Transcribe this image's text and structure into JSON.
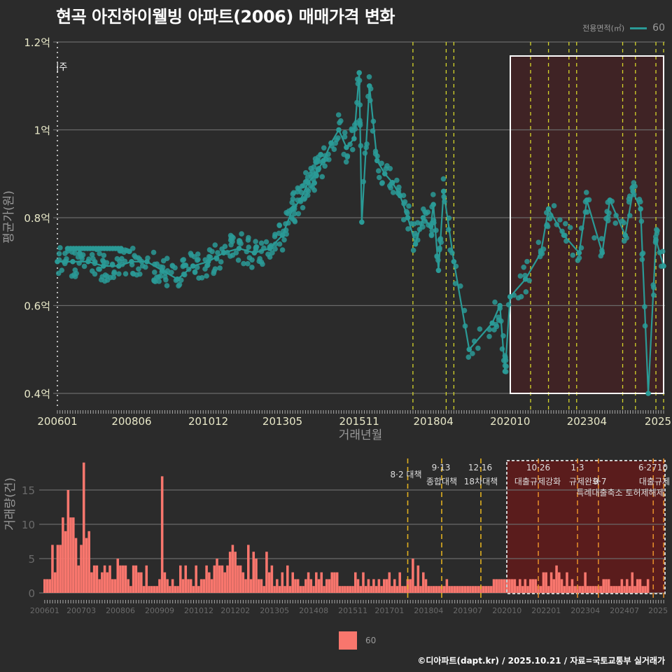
{
  "title": "현곡 아진하이웰빙 아파트(2006) 매매가격 변화",
  "legend_top": {
    "label": "전용면적(㎡)",
    "value": "60",
    "color": "#2a9a96"
  },
  "legend_bottom": {
    "value": "60",
    "color": "#f8766d"
  },
  "caption": "©디아파트(dapt.kr) / 2025.10.21 / 자료=국토교통부 실거래가",
  "annotations_top": {
    "left_marker": "|주"
  },
  "chart_data": [
    {
      "type": "line",
      "title": "현곡 아진하이웰빙 아파트(2006) 매매가격 변화",
      "xlabel": "거래년월",
      "ylabel": "평균가(원)",
      "x_ticks": [
        "200601",
        "200806",
        "201012",
        "201305",
        "201511",
        "201804",
        "202010",
        "202304",
        "2025"
      ],
      "y_ticks": [
        "0.4억",
        "0.6억",
        "0.8억",
        "1억",
        "1.2억"
      ],
      "ylim": [
        0.38,
        1.2
      ],
      "unit": "억원",
      "grid": true,
      "series": [
        {
          "name": "60",
          "color": "#2a9a96",
          "points": [
            [
              "200601",
              0.7
            ],
            [
              "200607",
              0.7
            ],
            [
              "200701",
              0.7
            ],
            [
              "200707",
              0.69
            ],
            [
              "200801",
              0.69
            ],
            [
              "200806",
              0.7
            ],
            [
              "200812",
              0.7
            ],
            [
              "200906",
              0.68
            ],
            [
              "200912",
              0.66
            ],
            [
              "201006",
              0.69
            ],
            [
              "201012",
              0.7
            ],
            [
              "201106",
              0.72
            ],
            [
              "201112",
              0.73
            ],
            [
              "201206",
              0.72
            ],
            [
              "201212",
              0.73
            ],
            [
              "201305",
              0.76
            ],
            [
              "201309",
              0.82
            ],
            [
              "201312",
              0.84
            ],
            [
              "201403",
              0.88
            ],
            [
              "201406",
              0.9
            ],
            [
              "201409",
              0.93
            ],
            [
              "201412",
              0.97
            ],
            [
              "201503",
              1.0
            ],
            [
              "201506",
              0.96
            ],
            [
              "201509",
              0.98
            ],
            [
              "201511",
              1.13
            ],
            [
              "201512",
              0.79
            ],
            [
              "201603",
              1.1
            ],
            [
              "201606",
              0.93
            ],
            [
              "201609",
              0.9
            ],
            [
              "201612",
              0.88
            ],
            [
              "201703",
              0.85
            ],
            [
              "201706",
              0.8
            ],
            [
              "201709",
              0.74
            ],
            [
              "201712",
              0.8
            ],
            [
              "201803",
              0.78
            ],
            [
              "201804",
              0.83
            ],
            [
              "201806",
              0.68
            ],
            [
              "201808",
              0.86
            ],
            [
              "201812",
              0.7
            ],
            [
              "201906",
              0.5
            ],
            [
              "202003",
              0.56
            ],
            [
              "202006",
              0.6
            ],
            [
              "202008",
              0.45
            ],
            [
              "202010",
              0.62
            ],
            [
              "202104",
              0.66
            ],
            [
              "202110",
              0.72
            ],
            [
              "202201",
              0.82
            ],
            [
              "202207",
              0.76
            ],
            [
              "202301",
              0.72
            ],
            [
              "202304",
              0.84
            ],
            [
              "202310",
              0.72
            ],
            [
              "202401",
              0.84
            ],
            [
              "202407",
              0.76
            ],
            [
              "202410",
              0.86
            ],
            [
              "202501",
              0.82
            ],
            [
              "202504",
              0.4
            ],
            [
              "202507",
              0.75
            ],
            [
              "202510",
              0.69
            ]
          ]
        }
      ],
      "highlight_region": {
        "from": "202010",
        "to": "202510",
        "color": "#5a1a1a"
      },
      "policy_lines": [
        "201708",
        "201809",
        "201812",
        "202106",
        "202201",
        "202209",
        "202212",
        "202406",
        "202411",
        "202507",
        "202510"
      ]
    },
    {
      "type": "bar",
      "xlabel": "",
      "ylabel": "거래량(건)",
      "x_ticks": [
        "200601",
        "200703",
        "200806",
        "200909",
        "201012",
        "201202",
        "201305",
        "201408",
        "201511",
        "201701",
        "201804",
        "201907",
        "202010",
        "202201",
        "202304",
        "202407",
        "2025"
      ],
      "y_ticks": [
        "0",
        "5",
        "10",
        "15"
      ],
      "ylim": [
        0,
        19
      ],
      "grid": true,
      "series": [
        {
          "name": "60",
          "color": "#f8766d",
          "values": [
            2,
            2,
            2,
            7,
            3,
            7,
            7,
            11,
            9,
            15,
            11,
            11,
            8,
            4,
            7,
            19,
            8,
            9,
            3,
            4,
            4,
            2,
            3,
            4,
            3,
            4,
            2,
            2,
            5,
            4,
            4,
            4,
            2,
            1,
            4,
            4,
            3,
            3,
            1,
            4,
            1,
            1,
            1,
            1,
            2,
            17,
            3,
            2,
            1,
            2,
            1,
            1,
            4,
            2,
            4,
            2,
            2,
            1,
            4,
            1,
            2,
            2,
            4,
            3,
            2,
            4,
            5,
            4,
            4,
            3,
            4,
            6,
            7,
            6,
            4,
            4,
            3,
            2,
            7,
            2,
            6,
            5,
            2,
            2,
            1,
            6,
            3,
            4,
            1,
            2,
            1,
            3,
            1,
            4,
            1,
            3,
            2,
            2,
            1,
            1,
            2,
            3,
            2,
            1,
            3,
            2,
            3,
            1,
            2,
            2,
            3,
            3,
            3,
            1,
            1,
            1,
            1,
            1,
            1,
            3,
            2,
            1,
            3,
            1,
            2,
            1,
            2,
            1,
            2,
            1,
            2,
            2,
            3,
            1,
            2,
            1,
            3,
            1,
            1,
            2,
            2,
            5,
            1,
            4,
            1,
            3,
            2,
            1,
            1,
            1,
            1,
            1,
            1,
            1,
            2,
            1,
            1,
            1,
            1,
            1,
            1,
            1,
            1,
            1,
            1,
            1,
            1,
            1,
            1,
            1,
            1,
            1,
            2,
            2,
            2,
            2,
            2,
            2,
            2,
            2,
            2,
            1,
            2,
            1,
            2,
            1,
            2,
            2,
            2,
            1,
            1,
            3,
            3,
            1,
            3,
            2,
            4,
            3,
            2,
            1,
            3,
            1,
            2,
            1,
            1,
            1,
            1,
            3,
            1,
            1,
            1,
            1,
            1,
            1,
            2,
            2,
            2,
            1,
            1,
            1,
            1,
            2,
            1,
            2,
            1,
            3,
            1,
            2,
            2,
            1,
            1,
            2
          ],
          "recent_values_note": "values from 2006-01 to 2025-10, approximate monthly counts"
        }
      ],
      "policy_annotations": [
        {
          "date": "201708",
          "label": "8·2 대책"
        },
        {
          "date": "201809",
          "label": "9·13",
          "sub": "종합대책"
        },
        {
          "date": "201912",
          "label": "12·16",
          "sub": "18차대책"
        },
        {
          "date": "202110",
          "label": "10·26",
          "sub": "대출규제강화"
        },
        {
          "date": "202301",
          "label": "1·3",
          "sub": "규제완화"
        },
        {
          "date": "202309",
          "label": "9·7",
          "sub": "특례대출축소 토허제해제"
        },
        {
          "date": "202506",
          "label": "6·27",
          "sub": "대출규제"
        },
        {
          "date": "202510",
          "label": "10"
        }
      ],
      "highlight_region": {
        "from": "202010",
        "to": "202510"
      }
    }
  ]
}
